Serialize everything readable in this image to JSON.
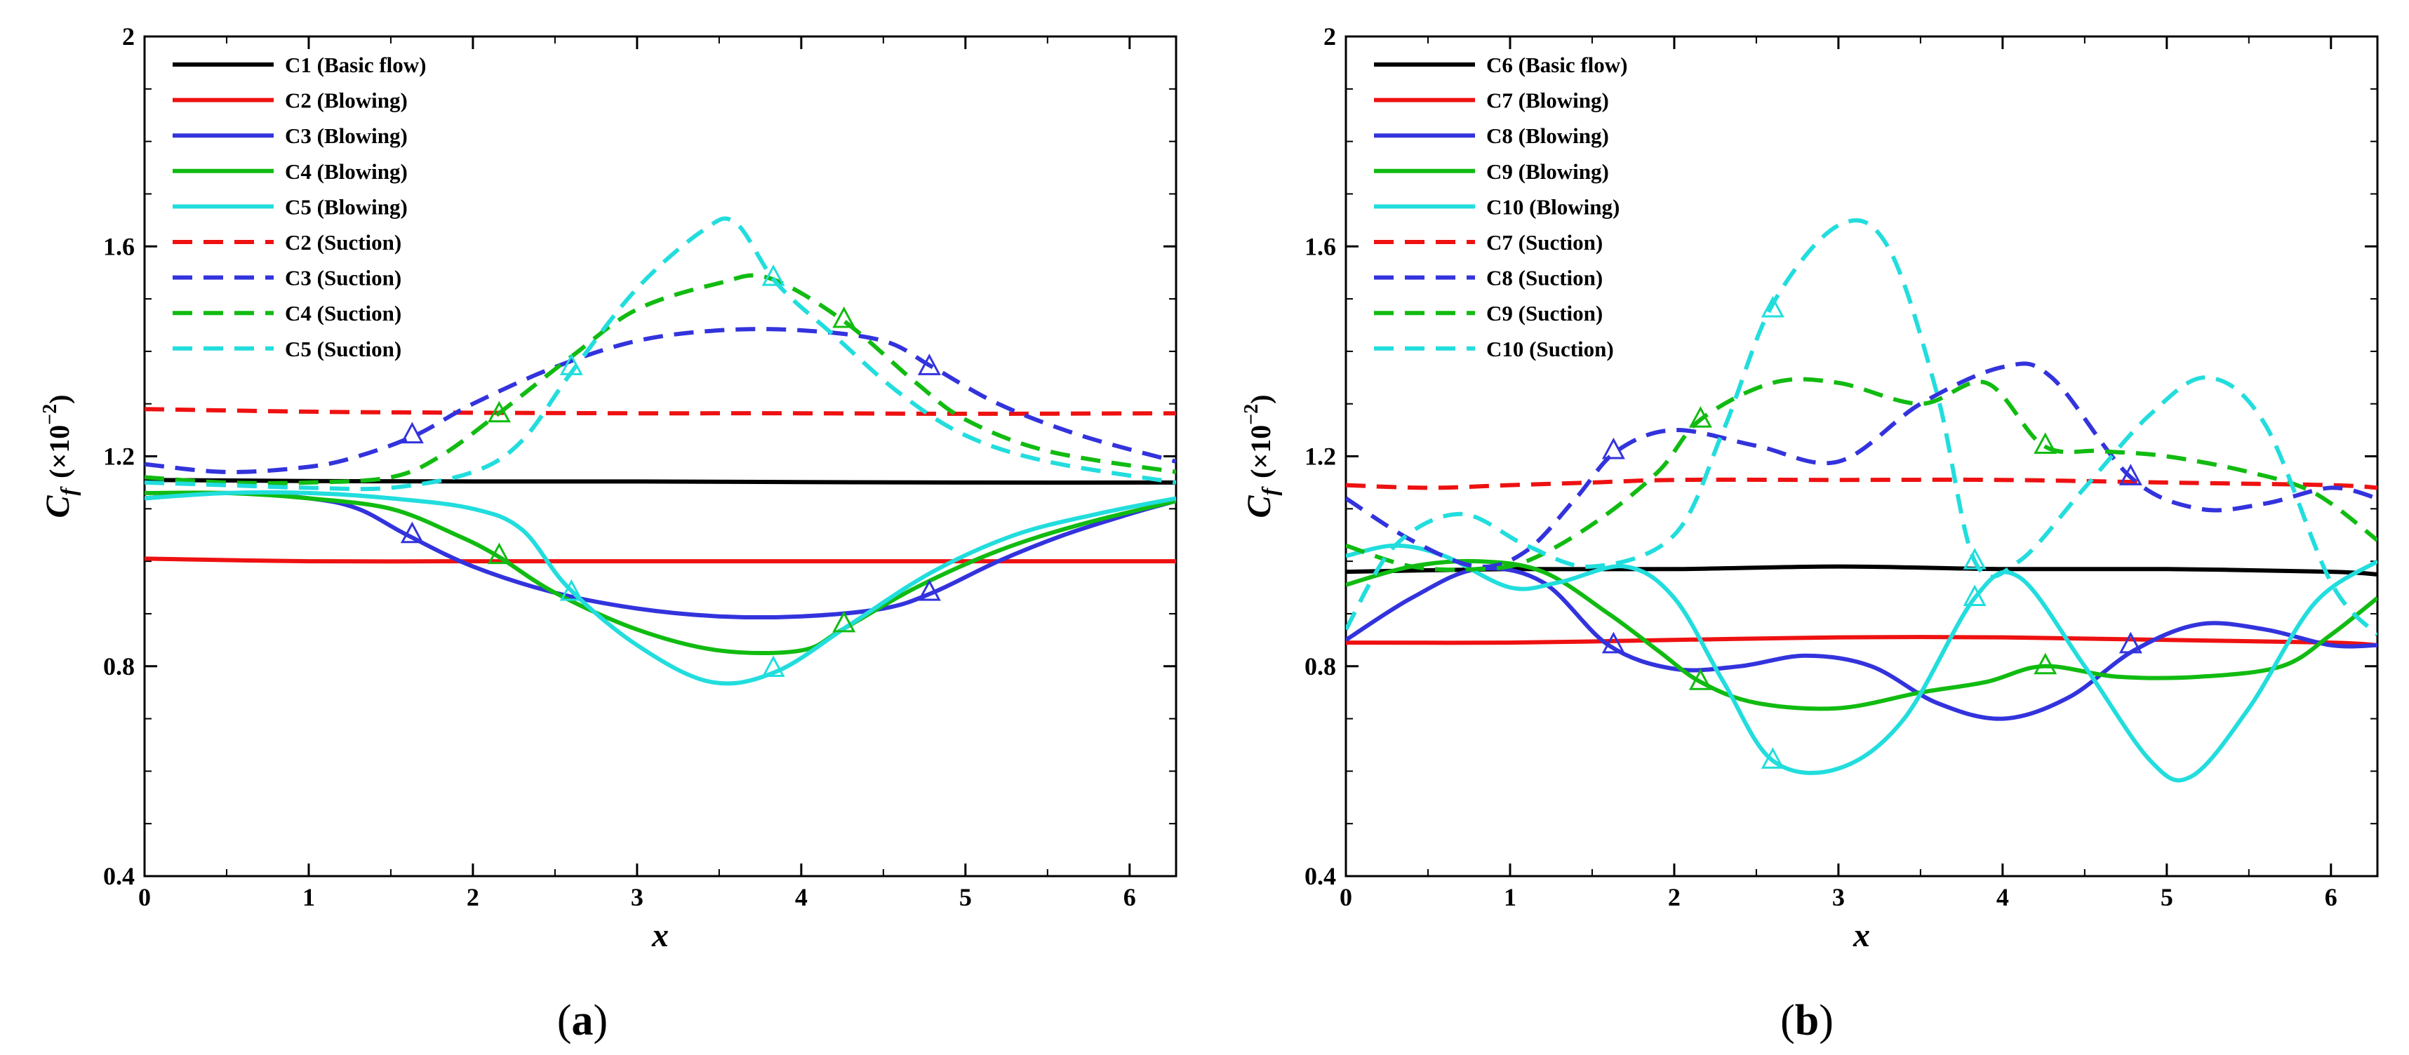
{
  "chart_data": [
    {
      "type": "line",
      "panel": "(a)",
      "panel_letter": "a",
      "xlabel": "x",
      "ylabel": "C",
      "ylabel_sub": "f",
      "ylabel_scale_prefix": "(×10",
      "ylabel_scale_exp": "−2",
      "ylabel_scale_suffix": ")",
      "xlim": [
        0,
        6.283
      ],
      "ylim": [
        0.4,
        2.0
      ],
      "xticks": [
        0,
        1,
        2,
        3,
        4,
        5,
        6
      ],
      "yticks": [
        0.4,
        0.8,
        1.2,
        1.6,
        2.0
      ],
      "ytick_labels": [
        "0.4",
        "0.8",
        "1.2",
        "1.6",
        "2"
      ],
      "series": [
        {
          "name": "C1 (Basic flow)",
          "color": "#000000",
          "dash": "solid",
          "marker": false,
          "x": [
            0,
            1,
            2,
            3,
            4,
            5,
            6.283
          ],
          "y": [
            1.155,
            1.153,
            1.152,
            1.152,
            1.151,
            1.15,
            1.15
          ]
        },
        {
          "name": "C2 (Blowing)",
          "color": "#ee1111",
          "dash": "solid",
          "marker": false,
          "x": [
            0,
            1,
            2,
            3,
            4,
            5,
            6.283
          ],
          "y": [
            1.005,
            1.0,
            1.0,
            1.0,
            1.0,
            1.0,
            1.0
          ]
        },
        {
          "name": "C3 (Blowing)",
          "color": "#3333dd",
          "dash": "solid",
          "marker": true,
          "x": [
            0,
            0.5,
            1.0,
            1.3,
            1.6,
            2.0,
            2.5,
            3.0,
            3.5,
            4.0,
            4.5,
            4.8,
            5.2,
            5.6,
            6.0,
            6.283
          ],
          "y": [
            1.12,
            1.13,
            1.12,
            1.1,
            1.05,
            0.99,
            0.94,
            0.91,
            0.895,
            0.895,
            0.91,
            0.94,
            1.0,
            1.05,
            1.09,
            1.115
          ]
        },
        {
          "name": "C4 (Blowing)",
          "color": "#11bb11",
          "dash": "solid",
          "marker": true,
          "x": [
            0,
            0.5,
            1.0,
            1.5,
            1.9,
            2.15,
            2.5,
            3.0,
            3.5,
            4.0,
            4.25,
            4.7,
            5.2,
            5.7,
            6.283
          ],
          "y": [
            1.13,
            1.13,
            1.12,
            1.1,
            1.05,
            1.01,
            0.94,
            0.87,
            0.83,
            0.83,
            0.87,
            0.95,
            1.02,
            1.07,
            1.115
          ]
        },
        {
          "name": "C5 (Blowing)",
          "color": "#22dddd",
          "dash": "solid",
          "marker": true,
          "x": [
            0,
            0.5,
            1.0,
            1.5,
            2.0,
            2.3,
            2.58,
            3.0,
            3.45,
            3.85,
            4.3,
            4.8,
            5.3,
            5.8,
            6.283
          ],
          "y": [
            1.12,
            1.13,
            1.13,
            1.12,
            1.1,
            1.06,
            0.95,
            0.84,
            0.77,
            0.79,
            0.88,
            0.98,
            1.05,
            1.09,
            1.12
          ]
        },
        {
          "name": "C2 (Suction)",
          "color": "#ee1111",
          "dash": "dashed",
          "marker": false,
          "x": [
            0,
            1,
            2,
            3,
            4,
            5,
            6.283
          ],
          "y": [
            1.29,
            1.285,
            1.283,
            1.282,
            1.282,
            1.281,
            1.282
          ]
        },
        {
          "name": "C3 (Suction)",
          "color": "#3333dd",
          "dash": "dashed",
          "marker": true,
          "x": [
            0,
            0.5,
            1.0,
            1.3,
            1.65,
            2.0,
            2.5,
            3.0,
            3.5,
            4.0,
            4.5,
            4.8,
            5.2,
            5.7,
            6.283
          ],
          "y": [
            1.185,
            1.17,
            1.18,
            1.2,
            1.24,
            1.3,
            1.37,
            1.42,
            1.44,
            1.44,
            1.42,
            1.37,
            1.3,
            1.24,
            1.19
          ]
        },
        {
          "name": "C4 (Suction)",
          "color": "#11bb11",
          "dash": "dashed",
          "marker": true,
          "x": [
            0,
            0.5,
            1.0,
            1.5,
            1.8,
            2.15,
            2.6,
            3.0,
            3.5,
            3.8,
            4.25,
            4.7,
            5.0,
            5.5,
            6.283
          ],
          "y": [
            1.16,
            1.15,
            1.15,
            1.16,
            1.2,
            1.28,
            1.39,
            1.48,
            1.53,
            1.54,
            1.46,
            1.34,
            1.27,
            1.21,
            1.17
          ]
        },
        {
          "name": "C5 (Suction)",
          "color": "#22dddd",
          "dash": "dashed",
          "marker": true,
          "x": [
            0,
            0.5,
            1.0,
            1.5,
            2.0,
            2.3,
            2.6,
            3.0,
            3.4,
            3.6,
            3.85,
            4.2,
            4.6,
            5.0,
            5.5,
            6.283
          ],
          "y": [
            1.15,
            1.145,
            1.14,
            1.14,
            1.17,
            1.23,
            1.36,
            1.52,
            1.63,
            1.645,
            1.53,
            1.43,
            1.32,
            1.24,
            1.19,
            1.15
          ]
        }
      ],
      "markers": [
        {
          "series": "C3 (Blowing)",
          "x": [
            1.63,
            4.78
          ],
          "y": [
            1.05,
            0.94
          ]
        },
        {
          "series": "C4 (Blowing)",
          "x": [
            2.16,
            4.26
          ],
          "y": [
            1.01,
            0.88
          ]
        },
        {
          "series": "C5 (Blowing)",
          "x": [
            2.6,
            3.83
          ],
          "y": [
            0.94,
            0.795
          ]
        },
        {
          "series": "C3 (Suction)",
          "x": [
            1.63,
            4.78
          ],
          "y": [
            1.24,
            1.37
          ]
        },
        {
          "series": "C4 (Suction)",
          "x": [
            2.16,
            4.26
          ],
          "y": [
            1.28,
            1.46
          ]
        },
        {
          "series": "C5 (Suction)",
          "x": [
            2.6,
            3.83
          ],
          "y": [
            1.37,
            1.54
          ]
        }
      ]
    },
    {
      "type": "line",
      "panel": "(b)",
      "panel_letter": "b",
      "xlabel": "x",
      "ylabel": "C",
      "ylabel_sub": "f",
      "ylabel_scale_prefix": "(×10",
      "ylabel_scale_exp": "−2",
      "ylabel_scale_suffix": ")",
      "xlim": [
        0,
        6.283
      ],
      "ylim": [
        0.4,
        2.0
      ],
      "xticks": [
        0,
        1,
        2,
        3,
        4,
        5,
        6
      ],
      "yticks": [
        0.4,
        0.8,
        1.2,
        1.6,
        2.0
      ],
      "ytick_labels": [
        "0.4",
        "0.8",
        "1.2",
        "1.6",
        "2"
      ],
      "series": [
        {
          "name": "C6 (Basic flow)",
          "color": "#000000",
          "dash": "solid",
          "marker": false,
          "x": [
            0,
            1,
            2,
            3,
            4,
            5,
            6,
            6.283
          ],
          "y": [
            0.98,
            0.985,
            0.985,
            0.99,
            0.985,
            0.985,
            0.98,
            0.975
          ]
        },
        {
          "name": "C7 (Blowing)",
          "color": "#ee1111",
          "dash": "solid",
          "marker": false,
          "x": [
            0,
            1,
            2,
            3,
            4,
            5,
            6,
            6.283
          ],
          "y": [
            0.845,
            0.845,
            0.85,
            0.855,
            0.855,
            0.85,
            0.845,
            0.84
          ]
        },
        {
          "name": "C8 (Blowing)",
          "color": "#3333dd",
          "dash": "solid",
          "marker": true,
          "x": [
            0,
            0.4,
            0.8,
            1.2,
            1.6,
            2.0,
            2.4,
            2.8,
            3.2,
            3.6,
            4.0,
            4.4,
            4.8,
            5.2,
            5.6,
            6.0,
            6.283
          ],
          "y": [
            0.85,
            0.93,
            0.985,
            0.96,
            0.84,
            0.795,
            0.8,
            0.82,
            0.8,
            0.73,
            0.7,
            0.74,
            0.83,
            0.88,
            0.87,
            0.84,
            0.84
          ]
        },
        {
          "name": "C9 (Blowing)",
          "color": "#11bb11",
          "dash": "solid",
          "marker": true,
          "x": [
            0,
            0.4,
            0.8,
            1.2,
            1.6,
            1.9,
            2.16,
            2.5,
            3.0,
            3.5,
            3.9,
            4.25,
            4.7,
            5.2,
            5.7,
            6.0,
            6.283
          ],
          "y": [
            0.955,
            0.99,
            1.0,
            0.98,
            0.9,
            0.83,
            0.77,
            0.73,
            0.72,
            0.75,
            0.77,
            0.8,
            0.78,
            0.78,
            0.8,
            0.86,
            0.93
          ]
        },
        {
          "name": "C10 (Blowing)",
          "color": "#22dddd",
          "dash": "solid",
          "marker": true,
          "x": [
            0,
            0.3,
            0.6,
            1.0,
            1.3,
            1.7,
            2.0,
            2.3,
            2.6,
            3.0,
            3.4,
            3.83,
            4.1,
            4.5,
            4.9,
            5.15,
            5.5,
            5.9,
            6.283
          ],
          "y": [
            1.01,
            1.03,
            1.01,
            0.95,
            0.96,
            0.99,
            0.93,
            0.77,
            0.62,
            0.605,
            0.7,
            0.93,
            0.97,
            0.8,
            0.62,
            0.59,
            0.72,
            0.92,
            1.0
          ]
        },
        {
          "name": "C7 (Suction)",
          "color": "#ee1111",
          "dash": "dashed",
          "marker": false,
          "x": [
            0,
            0.5,
            1.0,
            1.5,
            2.0,
            3.0,
            4.0,
            5.0,
            6.0,
            6.283
          ],
          "y": [
            1.145,
            1.14,
            1.145,
            1.15,
            1.155,
            1.155,
            1.155,
            1.15,
            1.145,
            1.14
          ]
        },
        {
          "name": "C8 (Suction)",
          "color": "#3333dd",
          "dash": "dashed",
          "marker": true,
          "x": [
            0,
            0.4,
            0.8,
            1.1,
            1.4,
            1.65,
            2.0,
            2.5,
            3.0,
            3.5,
            4.0,
            4.3,
            4.78,
            5.2,
            5.6,
            6.0,
            6.283
          ],
          "y": [
            1.12,
            1.04,
            0.99,
            1.02,
            1.12,
            1.21,
            1.25,
            1.22,
            1.19,
            1.3,
            1.37,
            1.35,
            1.16,
            1.1,
            1.11,
            1.14,
            1.12
          ]
        },
        {
          "name": "C9 (Suction)",
          "color": "#11bb11",
          "dash": "dashed",
          "marker": true,
          "x": [
            0,
            0.4,
            0.8,
            1.1,
            1.5,
            1.9,
            2.16,
            2.6,
            3.0,
            3.5,
            3.9,
            4.25,
            4.6,
            5.0,
            5.5,
            5.9,
            6.283
          ],
          "y": [
            1.03,
            0.99,
            0.985,
            1.0,
            1.07,
            1.17,
            1.27,
            1.34,
            1.34,
            1.3,
            1.34,
            1.22,
            1.21,
            1.2,
            1.17,
            1.13,
            1.04
          ]
        },
        {
          "name": "C10 (Suction)",
          "color": "#22dddd",
          "dash": "dashed",
          "marker": true,
          "x": [
            0,
            0.3,
            0.7,
            1.1,
            1.5,
            2.0,
            2.3,
            2.6,
            3.0,
            3.3,
            3.6,
            3.83,
            4.1,
            4.5,
            4.9,
            5.25,
            5.6,
            6.0,
            6.283
          ],
          "y": [
            0.87,
            1.03,
            1.09,
            1.03,
            0.99,
            1.05,
            1.25,
            1.49,
            1.64,
            1.6,
            1.32,
            1.0,
            1.0,
            1.14,
            1.28,
            1.35,
            1.26,
            0.96,
            0.86
          ]
        }
      ],
      "markers": [
        {
          "series": "C8 (Blowing)",
          "x": [
            1.63,
            4.78
          ],
          "y": [
            0.84,
            0.84
          ]
        },
        {
          "series": "C9 (Blowing)",
          "x": [
            2.16,
            4.26
          ],
          "y": [
            0.77,
            0.8
          ]
        },
        {
          "series": "C10 (Blowing)",
          "x": [
            2.6,
            3.83
          ],
          "y": [
            0.62,
            0.93
          ]
        },
        {
          "series": "C8 (Suction)",
          "x": [
            1.63,
            4.78
          ],
          "y": [
            1.21,
            1.16
          ]
        },
        {
          "series": "C9 (Suction)",
          "x": [
            2.16,
            4.26
          ],
          "y": [
            1.27,
            1.22
          ]
        },
        {
          "series": "C10 (Suction)",
          "x": [
            2.6,
            3.83
          ],
          "y": [
            1.48,
            1.0
          ]
        }
      ]
    }
  ]
}
